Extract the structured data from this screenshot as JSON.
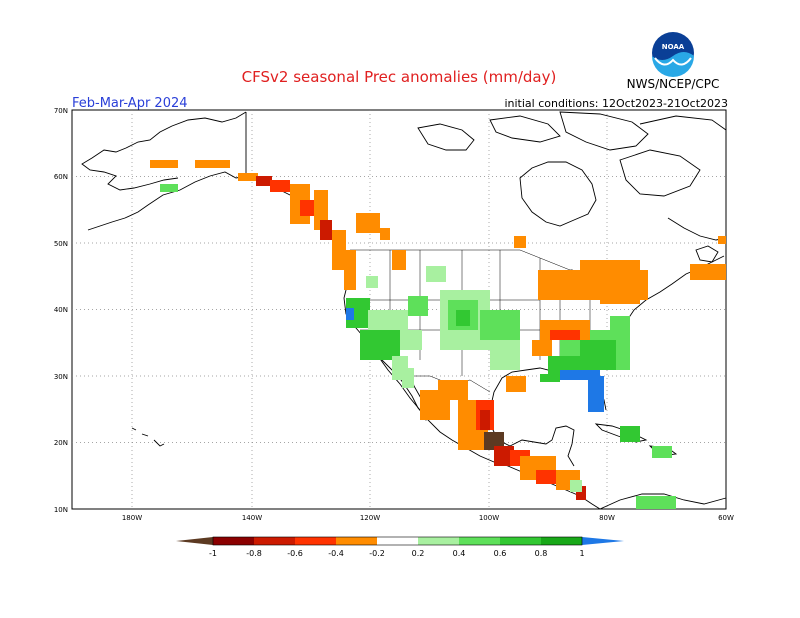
{
  "header": {
    "title": "CFSv2 seasonal Prec anomalies (mm/day)",
    "season": "Feb-Mar-Apr 2024",
    "init_conditions": "initial conditions: 12Oct2023-21Oct2023",
    "agency": "NWS/NCEP/CPC",
    "logo_text": "NOAA"
  },
  "map": {
    "lat_labels": [
      "70N",
      "60N",
      "50N",
      "40N",
      "30N",
      "20N",
      "10N"
    ],
    "lon_labels": [
      "180W",
      "140W",
      "120W",
      "100W",
      "80W",
      "60W"
    ],
    "lat_range": [
      10,
      70
    ],
    "lon_range": [
      -170,
      -60
    ]
  },
  "legend": {
    "tick_labels": [
      "-1",
      "-0.8",
      "-0.6",
      "-0.4",
      "-0.2",
      "0.2",
      "0.4",
      "0.6",
      "0.8",
      "1"
    ],
    "colors": {
      "lt_neg1": "#5c3a22",
      "neg1_neg08": "#8b0000",
      "neg08_neg06": "#cc1a00",
      "neg06_neg04": "#ff3300",
      "neg04_neg02": "#ff8c00",
      "neg02_pos02": "#ffffff",
      "pos02_pos04": "#a8f0a0",
      "pos04_pos06": "#5ee05a",
      "pos06_pos08": "#32c832",
      "pos08_pos1": "#18a818",
      "gt_pos1": "#1e78e6"
    }
  }
}
